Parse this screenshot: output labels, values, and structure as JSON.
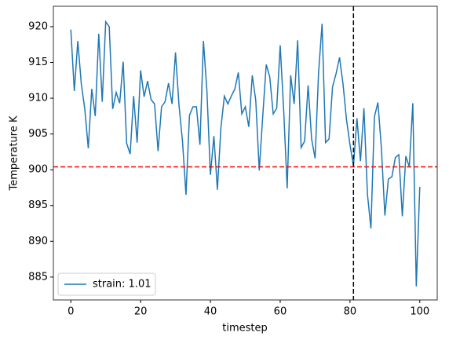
{
  "chart_data": {
    "type": "line",
    "xlabel": "timestep",
    "ylabel": "Temperature K",
    "x": [
      0,
      1,
      2,
      3,
      4,
      5,
      6,
      7,
      8,
      9,
      10,
      11,
      12,
      13,
      14,
      15,
      16,
      17,
      18,
      19,
      20,
      21,
      22,
      23,
      24,
      25,
      26,
      27,
      28,
      29,
      30,
      31,
      32,
      33,
      34,
      35,
      36,
      37,
      38,
      39,
      40,
      41,
      42,
      43,
      44,
      45,
      46,
      47,
      48,
      49,
      50,
      51,
      52,
      53,
      54,
      55,
      56,
      57,
      58,
      59,
      60,
      61,
      62,
      63,
      64,
      65,
      66,
      67,
      68,
      69,
      70,
      71,
      72,
      73,
      74,
      75,
      76,
      77,
      78,
      79,
      80,
      81,
      82,
      83,
      84,
      85,
      86,
      87,
      88,
      89,
      90,
      91,
      92,
      93,
      94,
      95,
      96,
      97,
      98,
      99,
      100
    ],
    "series": [
      {
        "name": "strain: 1.01",
        "color": "#1f77b4",
        "values": [
          919.6,
          911,
          918,
          912,
          908.5,
          903,
          911.3,
          907.5,
          919,
          909.5,
          920.7,
          920,
          908.5,
          910.8,
          909.3,
          915.1,
          903.7,
          902.2,
          910.3,
          903.8,
          913.9,
          910.2,
          912.4,
          909.8,
          909.2,
          902.6,
          908.8,
          909.5,
          912.1,
          909.2,
          916.4,
          909,
          904,
          896.5,
          907.6,
          908.8,
          908.8,
          903.5,
          918,
          911,
          899.3,
          904.7,
          897.2,
          905.8,
          910.3,
          909.2,
          910.3,
          911.3,
          913.6,
          907.8,
          908.8,
          906,
          913.2,
          909.7,
          899.9,
          907.5,
          914.7,
          913,
          907.8,
          908.6,
          917.4,
          908.3,
          897.4,
          913.2,
          909.2,
          918.1,
          903.1,
          904,
          911.8,
          904.3,
          901.6,
          913.6,
          920.4,
          903.8,
          904.3,
          911.6,
          913.4,
          915.7,
          912,
          907,
          903.5,
          900.5,
          907.2,
          901.2,
          908.6,
          896.6,
          891.8,
          907.4,
          909.4,
          903,
          893.6,
          898.7,
          899,
          901.7,
          902.1,
          893.5,
          901.9,
          900.4,
          909.3,
          883.7,
          897.6
        ]
      }
    ],
    "hline": {
      "value": 900.4,
      "color": "#ff0000"
    },
    "vline": {
      "value": 81,
      "color": "#000000"
    },
    "xlim": [
      -5,
      105
    ],
    "xticks": [
      0,
      20,
      40,
      60,
      80,
      100
    ],
    "ylim": [
      881.8,
      922.85
    ],
    "yticks": [
      885,
      890,
      895,
      900,
      905,
      910,
      915,
      920
    ],
    "legend": "lower left",
    "grid": false
  }
}
